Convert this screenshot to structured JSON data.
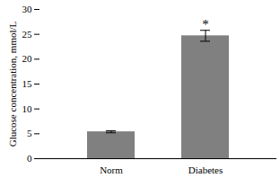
{
  "chart_data": {
    "type": "bar",
    "categories": [
      "Norm",
      "Diabetes"
    ],
    "values": [
      5.4,
      24.7
    ],
    "errors": [
      0.2,
      1.1
    ],
    "color": "#808080",
    "ylabel": "Glucose concentration, mmol/L",
    "ylim": [
      0,
      30
    ],
    "yticks": [
      0,
      5,
      10,
      15,
      20,
      25,
      30
    ],
    "grid": false,
    "annotations": [
      {
        "text": "*",
        "category": "Diabetes"
      }
    ]
  }
}
